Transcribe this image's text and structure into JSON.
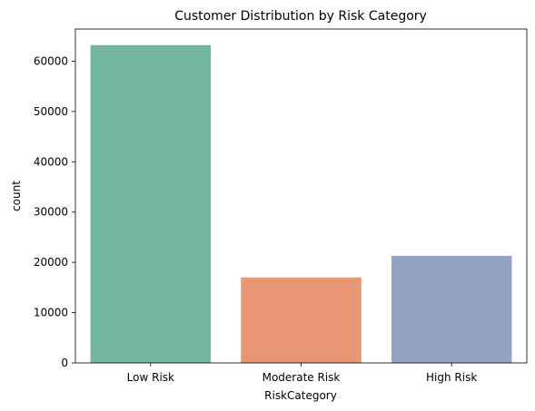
{
  "chart_data": {
    "type": "bar",
    "title": "Customer Distribution by Risk Category",
    "xlabel": "RiskCategory",
    "ylabel": "count",
    "categories": [
      "Low Risk",
      "Moderate Risk",
      "High Risk"
    ],
    "values": [
      63200,
      17000,
      21300
    ],
    "colors": [
      "#72b6a1",
      "#e99675",
      "#95a3c3"
    ],
    "ylim": [
      0,
      66400
    ],
    "yticks": [
      0,
      10000,
      20000,
      30000,
      40000,
      50000,
      60000
    ],
    "ytick_labels": [
      "0",
      "10000",
      "20000",
      "30000",
      "40000",
      "50000",
      "60000"
    ],
    "grid": false,
    "legend": "none"
  }
}
